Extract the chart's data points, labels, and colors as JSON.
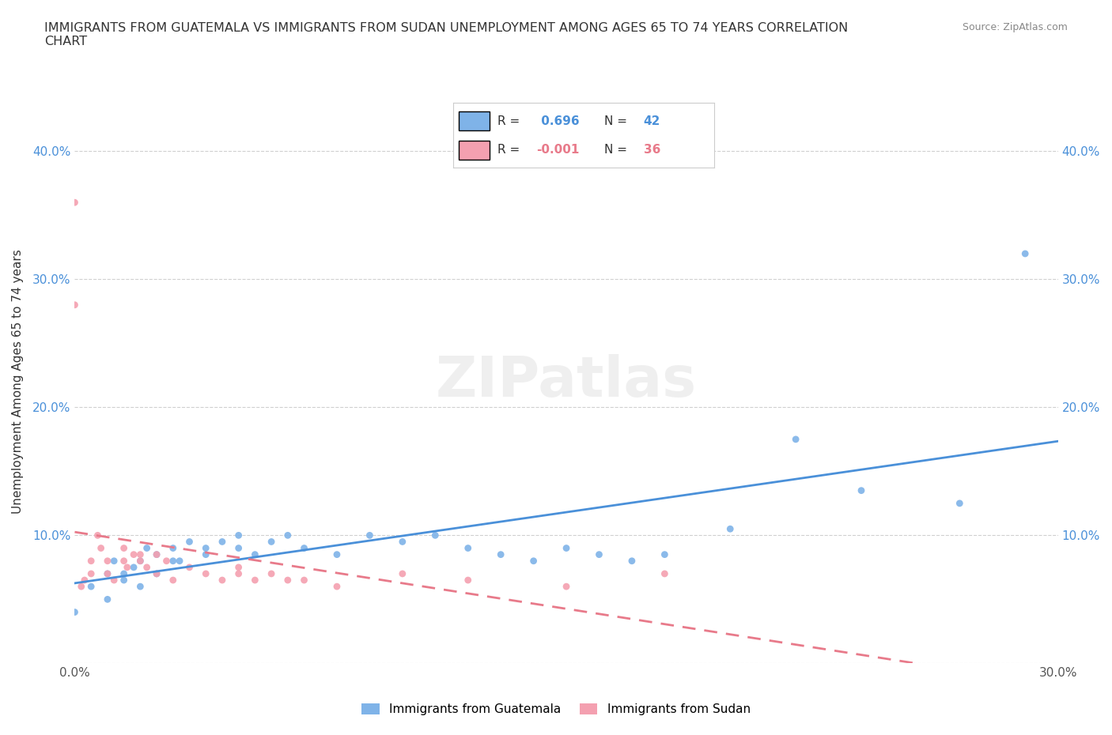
{
  "title": "IMMIGRANTS FROM GUATEMALA VS IMMIGRANTS FROM SUDAN UNEMPLOYMENT AMONG AGES 65 TO 74 YEARS CORRELATION\nCHART",
  "source": "Source: ZipAtlas.com",
  "xlabel": "",
  "ylabel": "Unemployment Among Ages 65 to 74 years",
  "xlim": [
    0.0,
    0.3
  ],
  "ylim": [
    0.0,
    0.44
  ],
  "xticks": [
    0.0,
    0.05,
    0.1,
    0.15,
    0.2,
    0.25,
    0.3
  ],
  "xtick_labels": [
    "0.0%",
    "",
    "",
    "",
    "",
    "",
    "30.0%"
  ],
  "ytick_labels": [
    "",
    "10.0%",
    "20.0%",
    "30.0%",
    "40.0%"
  ],
  "yticks": [
    0.0,
    0.1,
    0.2,
    0.3,
    0.4
  ],
  "guatemala_color": "#7fb3e8",
  "sudan_color": "#f4a0b0",
  "guatemala_line_color": "#4a90d9",
  "sudan_line_color": "#e87a8a",
  "R_guatemala": 0.696,
  "N_guatemala": 42,
  "R_sudan": -0.001,
  "N_sudan": 36,
  "watermark": "ZIPatlas",
  "legend_labels": [
    "Immigrants from Guatemala",
    "Immigrants from Sudan"
  ],
  "guatemala_scatter_x": [
    0.0,
    0.005,
    0.01,
    0.01,
    0.012,
    0.015,
    0.015,
    0.018,
    0.02,
    0.02,
    0.022,
    0.025,
    0.025,
    0.03,
    0.03,
    0.032,
    0.035,
    0.04,
    0.04,
    0.045,
    0.05,
    0.05,
    0.055,
    0.06,
    0.065,
    0.07,
    0.08,
    0.09,
    0.1,
    0.11,
    0.12,
    0.13,
    0.14,
    0.15,
    0.16,
    0.17,
    0.18,
    0.2,
    0.22,
    0.24,
    0.27,
    0.29
  ],
  "guatemala_scatter_y": [
    0.04,
    0.06,
    0.07,
    0.05,
    0.08,
    0.07,
    0.065,
    0.075,
    0.08,
    0.06,
    0.09,
    0.07,
    0.085,
    0.08,
    0.09,
    0.08,
    0.095,
    0.085,
    0.09,
    0.095,
    0.09,
    0.1,
    0.085,
    0.095,
    0.1,
    0.09,
    0.085,
    0.1,
    0.095,
    0.1,
    0.09,
    0.085,
    0.08,
    0.09,
    0.085,
    0.08,
    0.085,
    0.105,
    0.175,
    0.135,
    0.125,
    0.32
  ],
  "sudan_scatter_x": [
    0.0,
    0.0,
    0.002,
    0.003,
    0.005,
    0.005,
    0.007,
    0.008,
    0.01,
    0.01,
    0.012,
    0.015,
    0.015,
    0.016,
    0.018,
    0.02,
    0.02,
    0.022,
    0.025,
    0.025,
    0.028,
    0.03,
    0.035,
    0.04,
    0.045,
    0.05,
    0.05,
    0.055,
    0.06,
    0.065,
    0.07,
    0.08,
    0.1,
    0.12,
    0.15,
    0.18
  ],
  "sudan_scatter_y": [
    0.36,
    0.28,
    0.06,
    0.065,
    0.07,
    0.08,
    0.1,
    0.09,
    0.07,
    0.08,
    0.065,
    0.08,
    0.09,
    0.075,
    0.085,
    0.08,
    0.085,
    0.075,
    0.07,
    0.085,
    0.08,
    0.065,
    0.075,
    0.07,
    0.065,
    0.07,
    0.075,
    0.065,
    0.07,
    0.065,
    0.065,
    0.06,
    0.07,
    0.065,
    0.06,
    0.07
  ],
  "background_color": "#ffffff",
  "grid_color": "#d0d0d0"
}
